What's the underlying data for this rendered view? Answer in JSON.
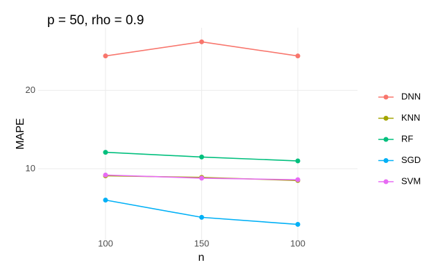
{
  "chart_data": {
    "type": "line",
    "title": "p = 50, rho = 0.9",
    "x_label": "n",
    "y_label": "MAPE",
    "categories": [
      "100",
      "150",
      "100"
    ],
    "series": [
      {
        "name": "DNN",
        "color": "#F8766D",
        "values": [
          24.4,
          26.2,
          24.4
        ]
      },
      {
        "name": "KNN",
        "color": "#A3A500",
        "values": [
          9.1,
          8.9,
          8.5
        ]
      },
      {
        "name": "RF",
        "color": "#00BF7D",
        "values": [
          12.1,
          11.5,
          11.0
        ]
      },
      {
        "name": "SGD",
        "color": "#00B0F6",
        "values": [
          6.0,
          3.8,
          2.9
        ]
      },
      {
        "name": "SVM",
        "color": "#E76BF3",
        "values": [
          9.2,
          8.8,
          8.6
        ]
      }
    ],
    "ylim": [
      1,
      28
    ],
    "yticks": [
      10,
      20
    ],
    "grid": true,
    "legend": "right"
  }
}
